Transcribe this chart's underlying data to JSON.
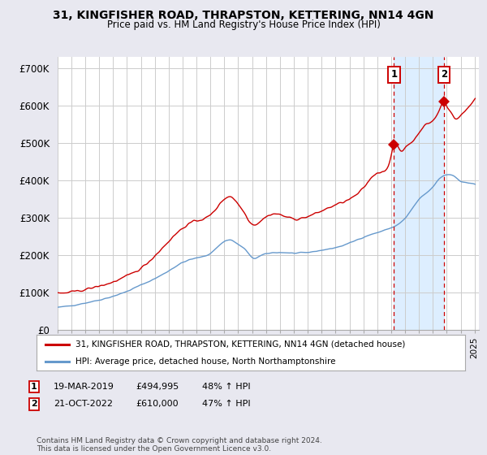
{
  "title1": "31, KINGFISHER ROAD, THRAPSTON, KETTERING, NN14 4GN",
  "title2": "Price paid vs. HM Land Registry's House Price Index (HPI)",
  "ylabel_ticks": [
    "£0",
    "£100K",
    "£200K",
    "£300K",
    "£400K",
    "£500K",
    "£600K",
    "£700K"
  ],
  "ytick_values": [
    0,
    100000,
    200000,
    300000,
    400000,
    500000,
    600000,
    700000
  ],
  "ylim": [
    0,
    730000
  ],
  "xlim_start": 1995.0,
  "xlim_end": 2025.3,
  "marker1_year": 2019.21,
  "marker1_price": 494995,
  "marker2_year": 2022.8,
  "marker2_price": 610000,
  "legend_line1": "31, KINGFISHER ROAD, THRAPSTON, KETTERING, NN14 4GN (detached house)",
  "legend_line2": "HPI: Average price, detached house, North Northamptonshire",
  "footer": "Contains HM Land Registry data © Crown copyright and database right 2024.\nThis data is licensed under the Open Government Licence v3.0.",
  "red_color": "#cc0000",
  "blue_color": "#6699cc",
  "shade_color": "#ddeeff",
  "bg_color": "#e8e8f0",
  "plot_bg": "#ffffff",
  "grid_color": "#cccccc"
}
